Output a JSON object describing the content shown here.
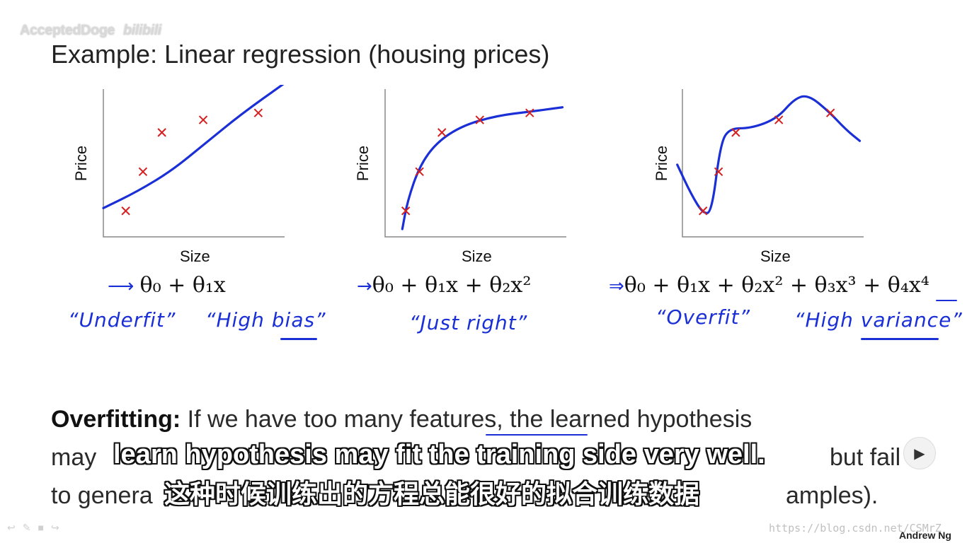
{
  "watermark": {
    "channel": "AcceptedDoge",
    "logo": "bilibili"
  },
  "slide": {
    "title": "Example: Linear regression (housing prices)",
    "plots": [
      {
        "ylabel": "Price",
        "xlabel": "Size",
        "formula": "θ₀ + θ₁x",
        "notes": [
          "“Underfit”",
          "“High bias”"
        ]
      },
      {
        "ylabel": "Price",
        "xlabel": "Size",
        "formula": "θ₀ + θ₁x + θ₂x²",
        "notes": [
          "“Just right”"
        ]
      },
      {
        "ylabel": "Price",
        "xlabel": "Size",
        "formula": "θ₀ + θ₁x + θ₂x² + θ₃x³ + θ₄x⁴",
        "notes": [
          "“Overfit”",
          "“High variance”"
        ]
      }
    ],
    "overfitting": {
      "label": "Overfitting:",
      "line1": "If we have too many features, the learned hypothesis",
      "line2": "may",
      "line2_end": "but fail",
      "line3": "to genera",
      "line3_end": "amples)."
    },
    "author": "Andrew Ng"
  },
  "subtitles": {
    "english": "learn hypothesis may fit the training side very well.",
    "chinese": "这种时候训练出的方程总能很好的拟合训练数据"
  },
  "player": {
    "next_icon": "next-icon",
    "tools_icons": [
      "back-icon",
      "pen-icon",
      "box-icon",
      "forward-icon"
    ]
  },
  "url": "https://blog.csdn.net/CSMrZ",
  "colors": {
    "pen": "#1a2fd6",
    "points": "#d42020",
    "axis": "#888888"
  },
  "chart_data": [
    {
      "type": "scatter",
      "xlabel": "Size",
      "ylabel": "Price",
      "points": [
        [
          0.13,
          0.13
        ],
        [
          0.23,
          0.41
        ],
        [
          0.34,
          0.69
        ],
        [
          0.58,
          0.78
        ],
        [
          0.9,
          0.83
        ]
      ],
      "fit": [
        [
          0.0,
          0.15
        ],
        [
          0.2,
          0.27
        ],
        [
          0.4,
          0.42
        ],
        [
          0.6,
          0.62
        ],
        [
          0.8,
          0.82
        ],
        [
          1.05,
          1.04
        ]
      ]
    },
    {
      "type": "scatter",
      "xlabel": "Size",
      "ylabel": "Price",
      "points": [
        [
          0.12,
          0.13
        ],
        [
          0.2,
          0.41
        ],
        [
          0.33,
          0.69
        ],
        [
          0.55,
          0.78
        ],
        [
          0.84,
          0.83
        ]
      ],
      "fit": [
        [
          0.1,
          0.0
        ],
        [
          0.13,
          0.2
        ],
        [
          0.2,
          0.45
        ],
        [
          0.3,
          0.62
        ],
        [
          0.45,
          0.74
        ],
        [
          0.65,
          0.81
        ],
        [
          0.85,
          0.84
        ],
        [
          1.03,
          0.87
        ]
      ]
    },
    {
      "type": "scatter",
      "xlabel": "Size",
      "ylabel": "Price",
      "points": [
        [
          0.12,
          0.13
        ],
        [
          0.21,
          0.41
        ],
        [
          0.31,
          0.69
        ],
        [
          0.56,
          0.78
        ],
        [
          0.86,
          0.83
        ]
      ],
      "fit": [
        [
          -0.03,
          0.46
        ],
        [
          0.05,
          0.25
        ],
        [
          0.12,
          0.11
        ],
        [
          0.17,
          0.12
        ],
        [
          0.22,
          0.6
        ],
        [
          0.27,
          0.72
        ],
        [
          0.4,
          0.72
        ],
        [
          0.55,
          0.79
        ],
        [
          0.65,
          0.93
        ],
        [
          0.73,
          0.96
        ],
        [
          0.85,
          0.84
        ],
        [
          0.95,
          0.71
        ],
        [
          1.03,
          0.63
        ]
      ]
    }
  ]
}
